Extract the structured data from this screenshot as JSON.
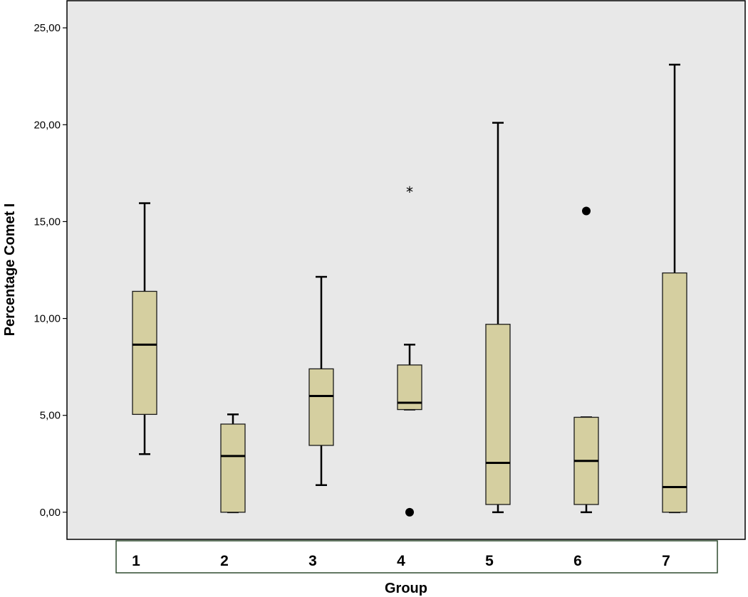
{
  "chart_data": {
    "type": "boxplot",
    "title": "",
    "xlabel": "Group",
    "ylabel": "Percentage Comet I",
    "ylim": [
      -1.4,
      26.4
    ],
    "yticks": [
      0,
      5,
      10,
      15,
      20,
      25
    ],
    "ytick_labels": [
      "0,00",
      "5,00",
      "10,00",
      "15,00",
      "20,00",
      "25,00"
    ],
    "grid": false,
    "legend": "none",
    "box_color": "#d5cfa0",
    "background_color": "#e8e8e8",
    "categories": [
      "1",
      "2",
      "3",
      "4",
      "5",
      "6",
      "7"
    ],
    "boxes": [
      {
        "group": "1",
        "whisker_low": 3.0,
        "q1": 5.05,
        "median": 8.65,
        "q3": 11.4,
        "whisker_high": 15.95,
        "outliers": [],
        "extremes": []
      },
      {
        "group": "2",
        "whisker_low": 0.0,
        "q1": 0.0,
        "median": 2.9,
        "q3": 4.55,
        "whisker_high": 5.05,
        "outliers": [],
        "extremes": []
      },
      {
        "group": "3",
        "whisker_low": 1.4,
        "q1": 3.45,
        "median": 6.0,
        "q3": 7.4,
        "whisker_high": 12.15,
        "outliers": [],
        "extremes": []
      },
      {
        "group": "4",
        "whisker_low": 5.3,
        "q1": 5.3,
        "median": 5.65,
        "q3": 7.6,
        "whisker_high": 8.65,
        "outliers": [
          0.0
        ],
        "extremes": [
          16.6
        ]
      },
      {
        "group": "5",
        "whisker_low": 0.0,
        "q1": 0.4,
        "median": 2.55,
        "q3": 9.7,
        "whisker_high": 20.1,
        "outliers": [],
        "extremes": []
      },
      {
        "group": "6",
        "whisker_low": 0.0,
        "q1": 0.4,
        "median": 2.65,
        "q3": 4.9,
        "whisker_high": 4.9,
        "outliers": [
          15.55
        ],
        "extremes": []
      },
      {
        "group": "7",
        "whisker_low": 0.0,
        "q1": 0.0,
        "median": 1.3,
        "q3": 12.35,
        "whisker_high": 23.1,
        "outliers": [],
        "extremes": []
      }
    ]
  }
}
